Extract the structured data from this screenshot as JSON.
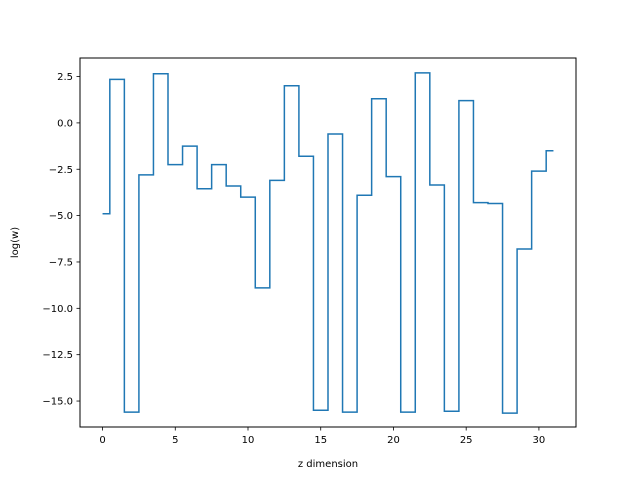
{
  "chart_data": {
    "type": "line",
    "step": "mid",
    "title": "",
    "xlabel": "z dimension",
    "ylabel": "log(w)",
    "xlim": [
      -1.55,
      32.55
    ],
    "ylim": [
      -16.4,
      3.5
    ],
    "xticks": [
      0,
      5,
      10,
      15,
      20,
      25,
      30
    ],
    "xtick_labels": [
      "0",
      "5",
      "10",
      "15",
      "20",
      "25",
      "30"
    ],
    "yticks": [
      2.5,
      0.0,
      -2.5,
      -5.0,
      -7.5,
      -10.0,
      -12.5,
      -15.0
    ],
    "ytick_labels": [
      "2.5",
      "0.0",
      "−2.5",
      "−5.0",
      "−7.5",
      "−10.0",
      "−12.5",
      "−15.0"
    ],
    "grid": false,
    "line_color": "#1f77b4",
    "x": [
      0,
      1,
      2,
      3,
      4,
      5,
      6,
      7,
      8,
      9,
      10,
      11,
      12,
      13,
      14,
      15,
      16,
      17,
      18,
      19,
      20,
      21,
      22,
      23,
      24,
      25,
      26,
      27,
      28,
      29,
      30,
      31
    ],
    "values": [
      -4.9,
      2.35,
      -15.6,
      -2.8,
      2.65,
      -2.25,
      -1.25,
      -3.55,
      -2.25,
      -3.4,
      -4.0,
      -8.9,
      -3.1,
      2.0,
      -1.8,
      -15.5,
      -0.6,
      -15.6,
      -3.9,
      1.3,
      -2.9,
      -15.6,
      2.7,
      -3.35,
      -15.55,
      1.2,
      -4.3,
      -4.35,
      -15.65,
      -6.8,
      -2.6,
      -1.5
    ]
  }
}
